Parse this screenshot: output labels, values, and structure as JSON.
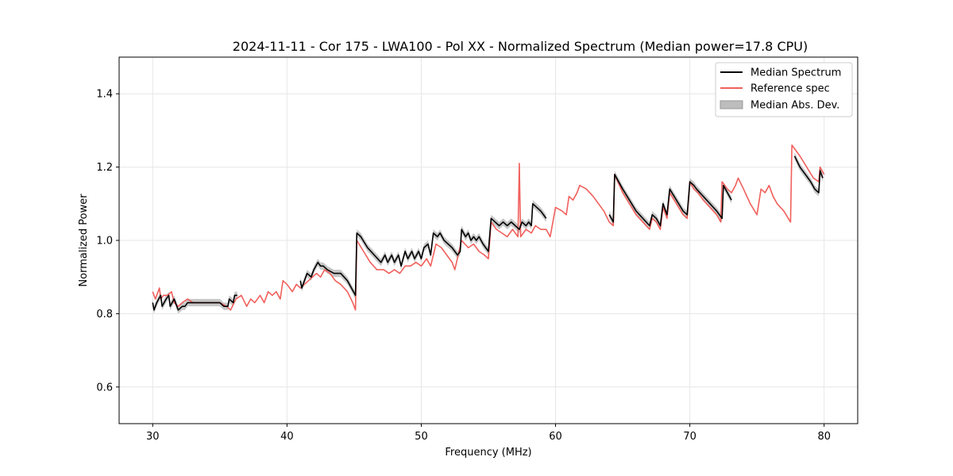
{
  "chart_data": {
    "type": "line",
    "title": "2024-11-11 - Cor 175 - LWA100 - Pol XX - Normalized Spectrum (Median power=17.8 CPU)",
    "xlabel": "Frequency (MHz)",
    "ylabel": "Normalized Power",
    "xlim": [
      27.5,
      82.5
    ],
    "ylim": [
      0.5,
      1.5
    ],
    "xticks": [
      30,
      40,
      50,
      60,
      70,
      80
    ],
    "yticks": [
      0.6,
      0.8,
      1.0,
      1.2,
      1.4
    ],
    "xtick_labels": [
      "30",
      "40",
      "50",
      "60",
      "70",
      "80"
    ],
    "ytick_labels": [
      "0.6",
      "0.8",
      "1.0",
      "1.2",
      "1.4"
    ],
    "grid": true,
    "legend_position": "top-right",
    "series": [
      {
        "name": "Median Spectrum",
        "color": "#000000",
        "segments": [
          [
            [
              30.0,
              0.83
            ],
            [
              30.1,
              0.81
            ],
            [
              30.3,
              0.83
            ],
            [
              30.6,
              0.85
            ],
            [
              30.7,
              0.82
            ],
            [
              31.0,
              0.84
            ],
            [
              31.2,
              0.85
            ],
            [
              31.3,
              0.82
            ],
            [
              31.6,
              0.84
            ],
            [
              31.7,
              0.83
            ],
            [
              31.8,
              0.82
            ],
            [
              31.9,
              0.81
            ],
            [
              32.2,
              0.82
            ],
            [
              32.4,
              0.82
            ],
            [
              32.6,
              0.83
            ],
            [
              33.0,
              0.83
            ],
            [
              33.5,
              0.83
            ],
            [
              34.0,
              0.83
            ],
            [
              34.5,
              0.83
            ],
            [
              35.0,
              0.83
            ],
            [
              35.3,
              0.82
            ],
            [
              35.6,
              0.82
            ],
            [
              35.7,
              0.84
            ],
            [
              36.0,
              0.83
            ],
            [
              36.1,
              0.85
            ],
            [
              36.3,
              0.85
            ]
          ],
          [
            [
              41.0,
              0.89
            ],
            [
              41.1,
              0.87
            ],
            [
              41.5,
              0.91
            ],
            [
              41.8,
              0.9
            ],
            [
              42.0,
              0.92
            ],
            [
              42.3,
              0.94
            ],
            [
              42.5,
              0.93
            ],
            [
              42.7,
              0.93
            ],
            [
              43.0,
              0.92
            ],
            [
              43.5,
              0.91
            ],
            [
              44.0,
              0.91
            ],
            [
              44.5,
              0.89
            ],
            [
              44.8,
              0.87
            ],
            [
              45.1,
              0.85
            ],
            [
              45.2,
              1.02
            ],
            [
              45.5,
              1.01
            ],
            [
              46.0,
              0.98
            ],
            [
              46.5,
              0.96
            ],
            [
              47.0,
              0.94
            ],
            [
              47.3,
              0.96
            ],
            [
              47.5,
              0.94
            ],
            [
              47.8,
              0.96
            ],
            [
              48.0,
              0.94
            ],
            [
              48.3,
              0.96
            ],
            [
              48.5,
              0.93
            ],
            [
              48.8,
              0.97
            ],
            [
              49.0,
              0.95
            ],
            [
              49.3,
              0.97
            ],
            [
              49.5,
              0.95
            ],
            [
              49.8,
              0.97
            ],
            [
              50.0,
              0.95
            ],
            [
              50.2,
              0.98
            ],
            [
              50.5,
              0.99
            ],
            [
              50.7,
              0.96
            ],
            [
              50.9,
              1.02
            ],
            [
              51.2,
              1.01
            ],
            [
              51.4,
              1.02
            ],
            [
              51.7,
              1.0
            ],
            [
              52.0,
              0.99
            ],
            [
              52.3,
              0.98
            ],
            [
              52.5,
              0.97
            ],
            [
              52.7,
              0.96
            ],
            [
              52.9,
              0.97
            ],
            [
              53.0,
              1.03
            ],
            [
              53.3,
              1.01
            ],
            [
              53.5,
              1.02
            ],
            [
              53.7,
              1.0
            ],
            [
              53.9,
              1.01
            ],
            [
              54.1,
              1.0
            ],
            [
              54.3,
              1.01
            ],
            [
              54.6,
              0.99
            ],
            [
              54.8,
              0.98
            ],
            [
              55.0,
              0.97
            ],
            [
              55.2,
              1.06
            ],
            [
              55.5,
              1.05
            ],
            [
              55.8,
              1.04
            ],
            [
              56.1,
              1.05
            ],
            [
              56.4,
              1.04
            ],
            [
              56.7,
              1.05
            ],
            [
              57.0,
              1.04
            ],
            [
              57.3,
              1.03
            ],
            [
              57.5,
              1.05
            ],
            [
              57.8,
              1.04
            ],
            [
              58.0,
              1.05
            ],
            [
              58.2,
              1.04
            ],
            [
              58.3,
              1.1
            ],
            [
              58.6,
              1.09
            ],
            [
              58.9,
              1.08
            ],
            [
              59.3,
              1.06
            ]
          ],
          [
            [
              64.0,
              1.07
            ],
            [
              64.3,
              1.05
            ],
            [
              64.4,
              1.18
            ],
            [
              65.0,
              1.14
            ],
            [
              65.5,
              1.11
            ],
            [
              66.0,
              1.08
            ],
            [
              66.5,
              1.06
            ],
            [
              67.0,
              1.04
            ],
            [
              67.2,
              1.07
            ],
            [
              67.5,
              1.06
            ],
            [
              67.8,
              1.04
            ],
            [
              68.0,
              1.1
            ],
            [
              68.3,
              1.07
            ],
            [
              68.5,
              1.14
            ],
            [
              69.0,
              1.11
            ],
            [
              69.5,
              1.08
            ],
            [
              69.8,
              1.07
            ],
            [
              70.0,
              1.16
            ],
            [
              70.3,
              1.15
            ],
            [
              70.5,
              1.14
            ],
            [
              71.0,
              1.12
            ],
            [
              71.5,
              1.1
            ],
            [
              72.0,
              1.08
            ],
            [
              72.4,
              1.06
            ],
            [
              72.5,
              1.15
            ],
            [
              72.8,
              1.13
            ],
            [
              73.1,
              1.11
            ]
          ],
          [
            [
              77.8,
              1.23
            ],
            [
              78.2,
              1.2
            ],
            [
              78.6,
              1.18
            ],
            [
              79.0,
              1.16
            ],
            [
              79.3,
              1.14
            ],
            [
              79.6,
              1.13
            ],
            [
              79.7,
              1.19
            ],
            [
              79.9,
              1.17
            ]
          ]
        ]
      },
      {
        "name": "Reference spec",
        "color": "#f0605c",
        "segments": [
          [
            [
              30.0,
              0.86
            ],
            [
              30.2,
              0.84
            ],
            [
              30.5,
              0.87
            ],
            [
              30.6,
              0.84
            ],
            [
              30.8,
              0.85
            ],
            [
              31.1,
              0.85
            ],
            [
              31.4,
              0.86
            ],
            [
              31.6,
              0.83
            ],
            [
              31.9,
              0.82
            ],
            [
              32.2,
              0.83
            ],
            [
              32.6,
              0.84
            ],
            [
              33.0,
              0.83
            ],
            [
              33.5,
              0.83
            ],
            [
              34.0,
              0.83
            ],
            [
              34.5,
              0.83
            ],
            [
              35.0,
              0.83
            ],
            [
              35.5,
              0.82
            ],
            [
              35.8,
              0.81
            ],
            [
              36.2,
              0.84
            ],
            [
              36.6,
              0.85
            ],
            [
              37.0,
              0.82
            ],
            [
              37.3,
              0.84
            ],
            [
              37.6,
              0.83
            ],
            [
              38.0,
              0.85
            ],
            [
              38.3,
              0.83
            ],
            [
              38.6,
              0.86
            ],
            [
              38.9,
              0.85
            ],
            [
              39.2,
              0.86
            ],
            [
              39.5,
              0.84
            ],
            [
              39.7,
              0.89
            ],
            [
              40.0,
              0.88
            ],
            [
              40.4,
              0.86
            ],
            [
              40.7,
              0.88
            ],
            [
              41.0,
              0.87
            ],
            [
              41.3,
              0.88
            ],
            [
              41.6,
              0.89
            ],
            [
              41.9,
              0.9
            ],
            [
              42.2,
              0.91
            ],
            [
              42.5,
              0.9
            ],
            [
              42.8,
              0.92
            ],
            [
              43.2,
              0.91
            ],
            [
              43.6,
              0.89
            ],
            [
              44.0,
              0.88
            ],
            [
              44.5,
              0.86
            ],
            [
              44.9,
              0.83
            ],
            [
              45.1,
              0.81
            ],
            [
              45.2,
              1.0
            ],
            [
              45.7,
              0.97
            ],
            [
              46.2,
              0.94
            ],
            [
              46.7,
              0.92
            ],
            [
              47.2,
              0.92
            ],
            [
              47.6,
              0.91
            ],
            [
              48.0,
              0.92
            ],
            [
              48.4,
              0.91
            ],
            [
              48.8,
              0.93
            ],
            [
              49.2,
              0.93
            ],
            [
              49.6,
              0.94
            ],
            [
              50.0,
              0.93
            ],
            [
              50.4,
              0.95
            ],
            [
              50.7,
              0.93
            ],
            [
              51.1,
              0.99
            ],
            [
              51.5,
              0.98
            ],
            [
              51.9,
              0.96
            ],
            [
              52.3,
              0.94
            ],
            [
              52.5,
              0.92
            ],
            [
              53.0,
              1.0
            ],
            [
              53.5,
              0.98
            ],
            [
              53.9,
              0.99
            ],
            [
              54.3,
              0.97
            ],
            [
              54.7,
              0.96
            ],
            [
              55.0,
              0.95
            ],
            [
              55.2,
              1.05
            ],
            [
              55.6,
              1.03
            ],
            [
              56.0,
              1.02
            ],
            [
              56.4,
              1.01
            ],
            [
              56.8,
              1.03
            ],
            [
              57.2,
              1.01
            ],
            [
              57.3,
              1.21
            ],
            [
              57.4,
              1.01
            ],
            [
              57.8,
              1.03
            ],
            [
              58.2,
              1.02
            ],
            [
              58.5,
              1.04
            ],
            [
              58.9,
              1.03
            ],
            [
              59.3,
              1.03
            ],
            [
              59.6,
              1.01
            ],
            [
              60.0,
              1.09
            ],
            [
              60.5,
              1.08
            ],
            [
              60.8,
              1.07
            ],
            [
              61.0,
              1.12
            ],
            [
              61.3,
              1.11
            ],
            [
              61.6,
              1.13
            ],
            [
              61.8,
              1.15
            ],
            [
              62.3,
              1.14
            ],
            [
              62.8,
              1.12
            ],
            [
              63.2,
              1.1
            ],
            [
              63.6,
              1.08
            ],
            [
              64.0,
              1.05
            ],
            [
              64.3,
              1.04
            ],
            [
              64.4,
              1.18
            ],
            [
              65.0,
              1.13
            ],
            [
              65.5,
              1.1
            ],
            [
              66.0,
              1.07
            ],
            [
              66.5,
              1.05
            ],
            [
              67.0,
              1.03
            ],
            [
              67.2,
              1.06
            ],
            [
              67.5,
              1.05
            ],
            [
              67.8,
              1.03
            ],
            [
              68.0,
              1.09
            ],
            [
              68.3,
              1.06
            ],
            [
              68.5,
              1.13
            ],
            [
              69.0,
              1.1
            ],
            [
              69.5,
              1.07
            ],
            [
              69.8,
              1.06
            ],
            [
              70.0,
              1.16
            ],
            [
              70.3,
              1.14
            ],
            [
              70.6,
              1.13
            ],
            [
              71.0,
              1.11
            ],
            [
              71.5,
              1.09
            ],
            [
              72.0,
              1.07
            ],
            [
              72.3,
              1.05
            ],
            [
              72.4,
              1.16
            ],
            [
              72.8,
              1.14
            ],
            [
              73.1,
              1.13
            ],
            [
              73.4,
              1.15
            ],
            [
              73.6,
              1.17
            ],
            [
              74.0,
              1.14
            ],
            [
              74.5,
              1.1
            ],
            [
              75.0,
              1.07
            ],
            [
              75.3,
              1.14
            ],
            [
              75.6,
              1.13
            ],
            [
              75.9,
              1.15
            ],
            [
              76.2,
              1.12
            ],
            [
              76.5,
              1.1
            ],
            [
              77.0,
              1.08
            ],
            [
              77.5,
              1.05
            ],
            [
              77.6,
              1.26
            ],
            [
              78.2,
              1.23
            ],
            [
              78.7,
              1.2
            ],
            [
              79.2,
              1.17
            ],
            [
              79.6,
              1.16
            ],
            [
              79.7,
              1.2
            ],
            [
              80.0,
              1.18
            ]
          ]
        ]
      }
    ],
    "band": {
      "name": "Median Abs. Dev.",
      "color": "#bdbdbd",
      "half_width": 0.01
    }
  }
}
